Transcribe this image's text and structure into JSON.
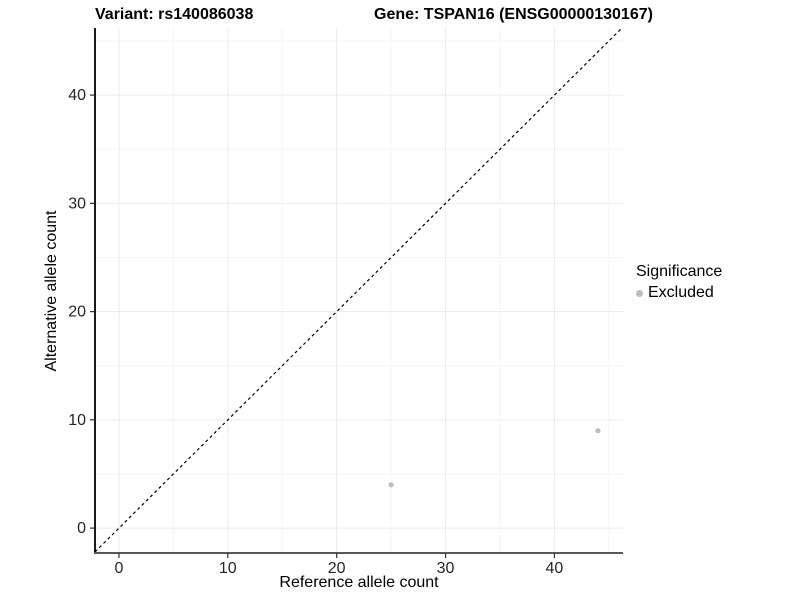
{
  "chart_data": {
    "type": "scatter",
    "title_left": "Variant: rs140086038",
    "title_right": "Gene: TSPAN16 (ENSG00000130167)",
    "xlabel": "Reference allele count",
    "ylabel": "Alternative allele count",
    "xlim": [
      -2.2,
      46.3
    ],
    "ylim": [
      -2.3,
      46.2
    ],
    "x_ticks": [
      0,
      10,
      20,
      30,
      40
    ],
    "y_ticks": [
      0,
      10,
      20,
      30,
      40
    ],
    "x_minor_ticks": [
      5,
      15,
      25,
      35,
      45
    ],
    "y_minor_ticks": [
      5,
      15,
      25,
      35,
      45
    ],
    "grid": true,
    "legend_position": "right",
    "series": [
      {
        "name": "Excluded",
        "color": "#bdbdbd",
        "points": [
          {
            "x": 25,
            "y": 4
          },
          {
            "x": 44,
            "y": 9
          }
        ]
      }
    ],
    "identity_line": {
      "style": "dashed",
      "color": "#000000",
      "from": -2.2,
      "to": 46.2
    },
    "legend": {
      "title": "Significance",
      "items": [
        {
          "label": "Excluded",
          "color": "#bdbdbd"
        }
      ]
    }
  },
  "colors": {
    "background": "#ffffff",
    "grid_major": "#ebebeb",
    "grid_minor": "#f5f5f5",
    "axis_line_y": "#000000",
    "axis_line_x": "#595959",
    "tick_mark": "#333333",
    "tick_label": "#262626",
    "point": "#bdbdbd"
  }
}
